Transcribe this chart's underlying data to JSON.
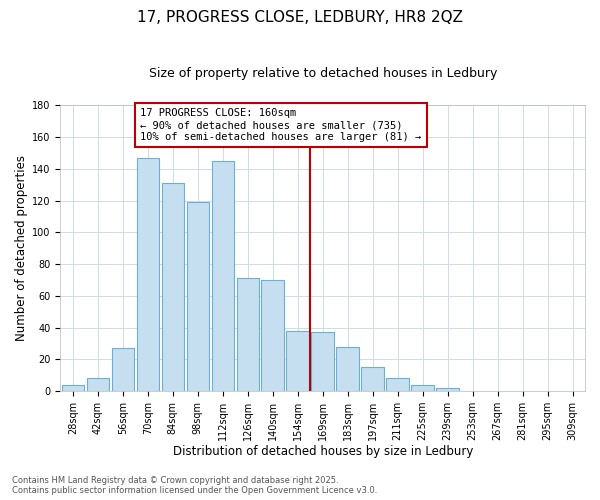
{
  "title": "17, PROGRESS CLOSE, LEDBURY, HR8 2QZ",
  "subtitle": "Size of property relative to detached houses in Ledbury",
  "xlabel": "Distribution of detached houses by size in Ledbury",
  "ylabel": "Number of detached properties",
  "bar_labels": [
    "28sqm",
    "42sqm",
    "56sqm",
    "70sqm",
    "84sqm",
    "98sqm",
    "112sqm",
    "126sqm",
    "140sqm",
    "154sqm",
    "169sqm",
    "183sqm",
    "197sqm",
    "211sqm",
    "225sqm",
    "239sqm",
    "253sqm",
    "267sqm",
    "281sqm",
    "295sqm",
    "309sqm"
  ],
  "bar_values": [
    4,
    8,
    27,
    147,
    131,
    119,
    145,
    71,
    70,
    38,
    37,
    28,
    15,
    8,
    4,
    2,
    0,
    0,
    0,
    0,
    0
  ],
  "bar_color": "#c6dff0",
  "bar_edge_color": "#6baed6",
  "vline_color": "#bb0000",
  "annotation_text": "17 PROGRESS CLOSE: 160sqm\n← 90% of detached houses are smaller (735)\n10% of semi-detached houses are larger (81) →",
  "annotation_box_color": "#ffffff",
  "annotation_box_edge": "#bb0000",
  "ylim": [
    0,
    180
  ],
  "yticks": [
    0,
    20,
    40,
    60,
    80,
    100,
    120,
    140,
    160,
    180
  ],
  "footer_line1": "Contains HM Land Registry data © Crown copyright and database right 2025.",
  "footer_line2": "Contains public sector information licensed under the Open Government Licence v3.0.",
  "bg_color": "#ffffff",
  "grid_color": "#ccdde8",
  "title_fontsize": 11,
  "subtitle_fontsize": 9,
  "axis_label_fontsize": 8.5,
  "tick_fontsize": 7,
  "footer_fontsize": 6,
  "ann_fontsize": 7.5
}
